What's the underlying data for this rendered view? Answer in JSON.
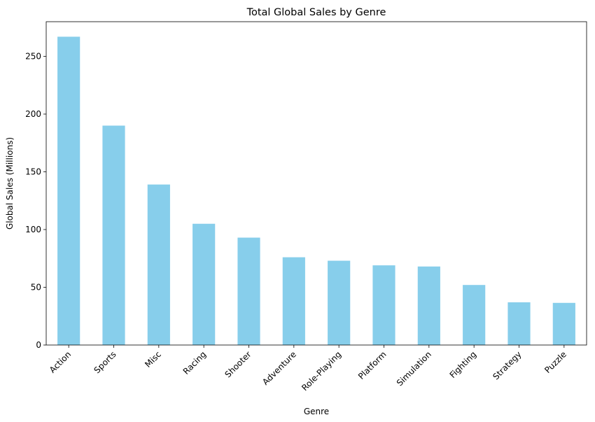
{
  "chart_data": {
    "type": "bar",
    "title": "Total Global Sales by Genre",
    "xlabel": "Genre",
    "ylabel": "Global Sales (Millions)",
    "categories": [
      "Action",
      "Sports",
      "Misc",
      "Racing",
      "Shooter",
      "Adventure",
      "Role-Playing",
      "Platform",
      "Simulation",
      "Fighting",
      "Strategy",
      "Puzzle"
    ],
    "values": [
      267,
      190,
      139,
      105,
      93,
      76,
      73,
      69,
      68,
      52,
      37,
      36.5
    ],
    "ylim": [
      0,
      280
    ],
    "yticks": [
      0,
      50,
      100,
      150,
      200,
      250
    ],
    "bar_color": "#87ceeb",
    "grid": false,
    "legend": "none"
  }
}
